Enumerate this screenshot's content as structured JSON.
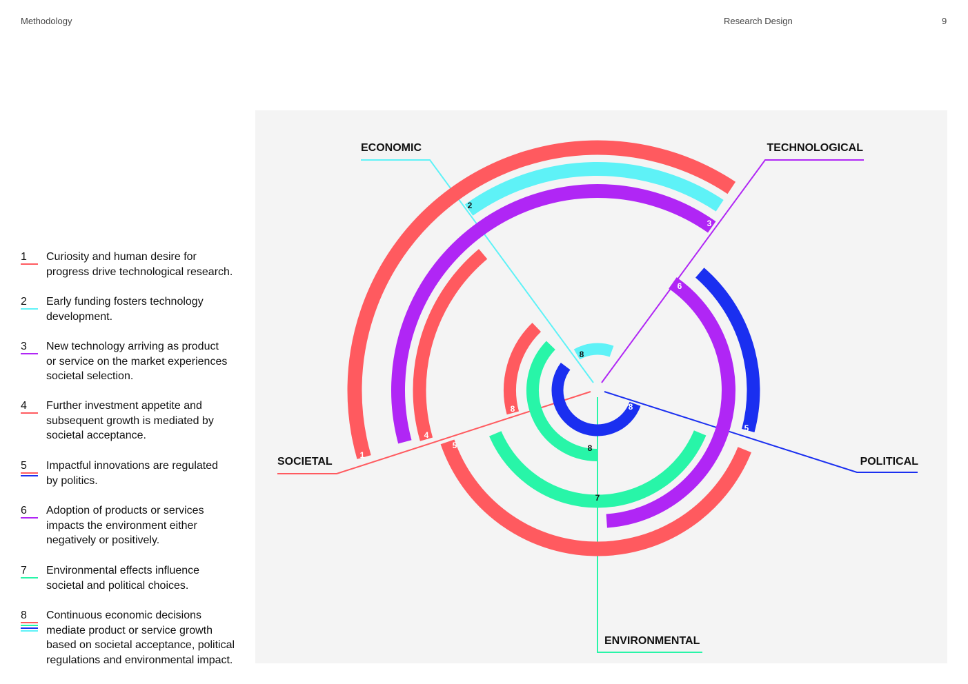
{
  "header": {
    "left": "Methodology",
    "center": "Research Design",
    "page": "9"
  },
  "legend": [
    {
      "number": "1",
      "lines": [
        "Curiosity and human desire for",
        "progress drive technological research."
      ]
    },
    {
      "number": "2",
      "lines": [
        "Early funding fosters technology",
        "development."
      ]
    },
    {
      "number": "3",
      "lines": [
        "New technology arriving as product",
        "or service on the market experiences",
        "societal selection."
      ]
    },
    {
      "number": "4",
      "lines": [
        "Further investment appetite and",
        "subsequent growth is mediated by",
        "societal acceptance."
      ]
    },
    {
      "number": "5",
      "lines": [
        "Impactful innovations are regulated",
        "by politics."
      ]
    },
    {
      "number": "6",
      "lines": [
        "Adoption of products or services",
        "impacts the environment either",
        "negatively or positively."
      ]
    },
    {
      "number": "7",
      "lines": [
        "Environmental effects influence",
        "societal and political choices."
      ]
    },
    {
      "number": "8",
      "lines": [
        "Continuous economic decisions",
        "mediate product or service growth",
        "based on societal acceptance, political",
        "regulations and environmental impact."
      ]
    }
  ],
  "diagram": {
    "axes": [
      "ECONOMIC",
      "TECHNOLOGICAL",
      "SOCIETAL",
      "POLITICAL",
      "ENVIRONMENTAL"
    ],
    "arc_labels": [
      "1",
      "2",
      "3",
      "4",
      "5",
      "5",
      "6",
      "7",
      "8",
      "8",
      "8",
      "8"
    ]
  }
}
